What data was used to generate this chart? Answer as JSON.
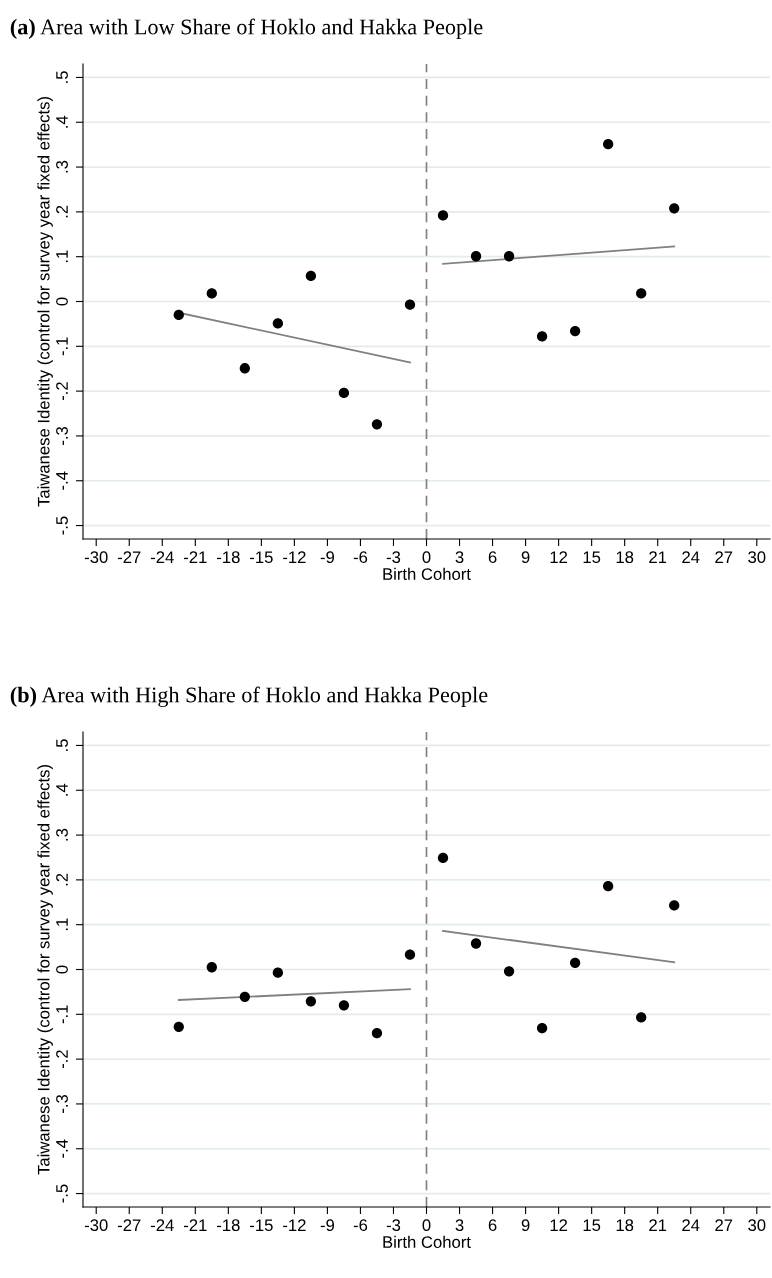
{
  "chart_data": [
    {
      "type": "scatter",
      "title": "(a) Area with Low Share of Hoklo and Hakka People",
      "xlabel": "Birth Cohort",
      "ylabel": "Taiwanese Identity (control for survey year fixed effects)",
      "series": [
        {
          "marker": "circle",
          "color": "#000000",
          "x": [
            -22.5,
            -19.5,
            -16.5,
            -13.5,
            -10.5,
            -7.5,
            -4.5,
            -1.5,
            1.5,
            4.5,
            7.5,
            10.5,
            13.5,
            16.5,
            19.5,
            22.5
          ],
          "values": [
            -0.03,
            0.018,
            -0.149,
            -0.049,
            0.057,
            -0.204,
            -0.274,
            -0.007,
            0.192,
            0.101,
            0.101,
            -0.078,
            -0.066,
            0.351,
            0.018,
            0.208
          ]
        },
        {
          "type": "line",
          "color": "#808080",
          "x": [
            -22.5,
            -1.5
          ],
          "values": [
            -0.025,
            -0.136
          ]
        },
        {
          "type": "line",
          "color": "#808080",
          "x": [
            1.5,
            22.5
          ],
          "values": [
            0.084,
            0.123
          ]
        }
      ],
      "xlim": [
        -31.2,
        31.2
      ],
      "xticks": [
        -30,
        -27,
        -24,
        -21,
        -18,
        -15,
        -12,
        -9,
        -6,
        -3,
        0,
        3,
        6,
        9,
        12,
        15,
        18,
        21,
        24,
        27,
        30
      ],
      "ylim": [
        -0.53,
        0.53
      ],
      "yticks": [
        {
          "value": -0.5,
          "label": "-.5"
        },
        {
          "value": -0.4,
          "label": "-.4"
        },
        {
          "value": -0.3,
          "label": "-.3"
        },
        {
          "value": -0.2,
          "label": "-.2"
        },
        {
          "value": -0.1,
          "label": "-.1"
        },
        0,
        {
          "value": 0.1,
          "label": ".1"
        },
        {
          "value": 0.2,
          "label": ".2"
        },
        {
          "value": 0.3,
          "label": ".3"
        },
        {
          "value": 0.4,
          "label": ".4"
        },
        {
          "value": 0.5,
          "label": ".5"
        }
      ],
      "ref_lines": [
        {
          "axis": "x",
          "value": 0,
          "color": "#808080",
          "line_style": "dashed"
        }
      ],
      "grid": "y"
    },
    {
      "type": "scatter",
      "title": "(b) Area with High Share of Hoklo and Hakka People",
      "xlabel": "Birth Cohort",
      "ylabel": "Taiwanese Identity (control for survey year fixed effects)",
      "series": [
        {
          "marker": "circle",
          "color": "#000000",
          "x": [
            -22.5,
            -19.5,
            -16.5,
            -13.5,
            -10.5,
            -7.5,
            -4.5,
            -1.5,
            1.5,
            4.5,
            7.5,
            10.5,
            13.5,
            16.5,
            19.5,
            22.5
          ],
          "values": [
            -0.128,
            0.005,
            -0.061,
            -0.007,
            -0.071,
            -0.08,
            -0.142,
            0.033,
            0.249,
            0.058,
            -0.004,
            -0.131,
            0.015,
            0.186,
            -0.107,
            0.143
          ]
        },
        {
          "type": "line",
          "color": "#808080",
          "x": [
            -22.5,
            -1.5
          ],
          "values": [
            -0.068,
            -0.044
          ]
        },
        {
          "type": "line",
          "color": "#808080",
          "x": [
            1.5,
            22.5
          ],
          "values": [
            0.086,
            0.016
          ]
        }
      ],
      "xlim": [
        -31.2,
        31.2
      ],
      "xticks": [
        -30,
        -27,
        -24,
        -21,
        -18,
        -15,
        -12,
        -9,
        -6,
        -3,
        0,
        3,
        6,
        9,
        12,
        15,
        18,
        21,
        24,
        27,
        30
      ],
      "ylim": [
        -0.53,
        0.53
      ],
      "yticks": [
        {
          "value": -0.5,
          "label": "-.5"
        },
        {
          "value": -0.4,
          "label": "-.4"
        },
        {
          "value": -0.3,
          "label": "-.3"
        },
        {
          "value": -0.2,
          "label": "-.2"
        },
        {
          "value": -0.1,
          "label": "-.1"
        },
        0,
        {
          "value": 0.1,
          "label": ".1"
        },
        {
          "value": 0.2,
          "label": ".2"
        },
        {
          "value": 0.3,
          "label": ".3"
        },
        {
          "value": 0.4,
          "label": ".4"
        },
        {
          "value": 0.5,
          "label": ".5"
        }
      ],
      "ref_lines": [
        {
          "axis": "x",
          "value": 0,
          "color": "#808080",
          "line_style": "dashed"
        }
      ],
      "grid": "y"
    }
  ]
}
